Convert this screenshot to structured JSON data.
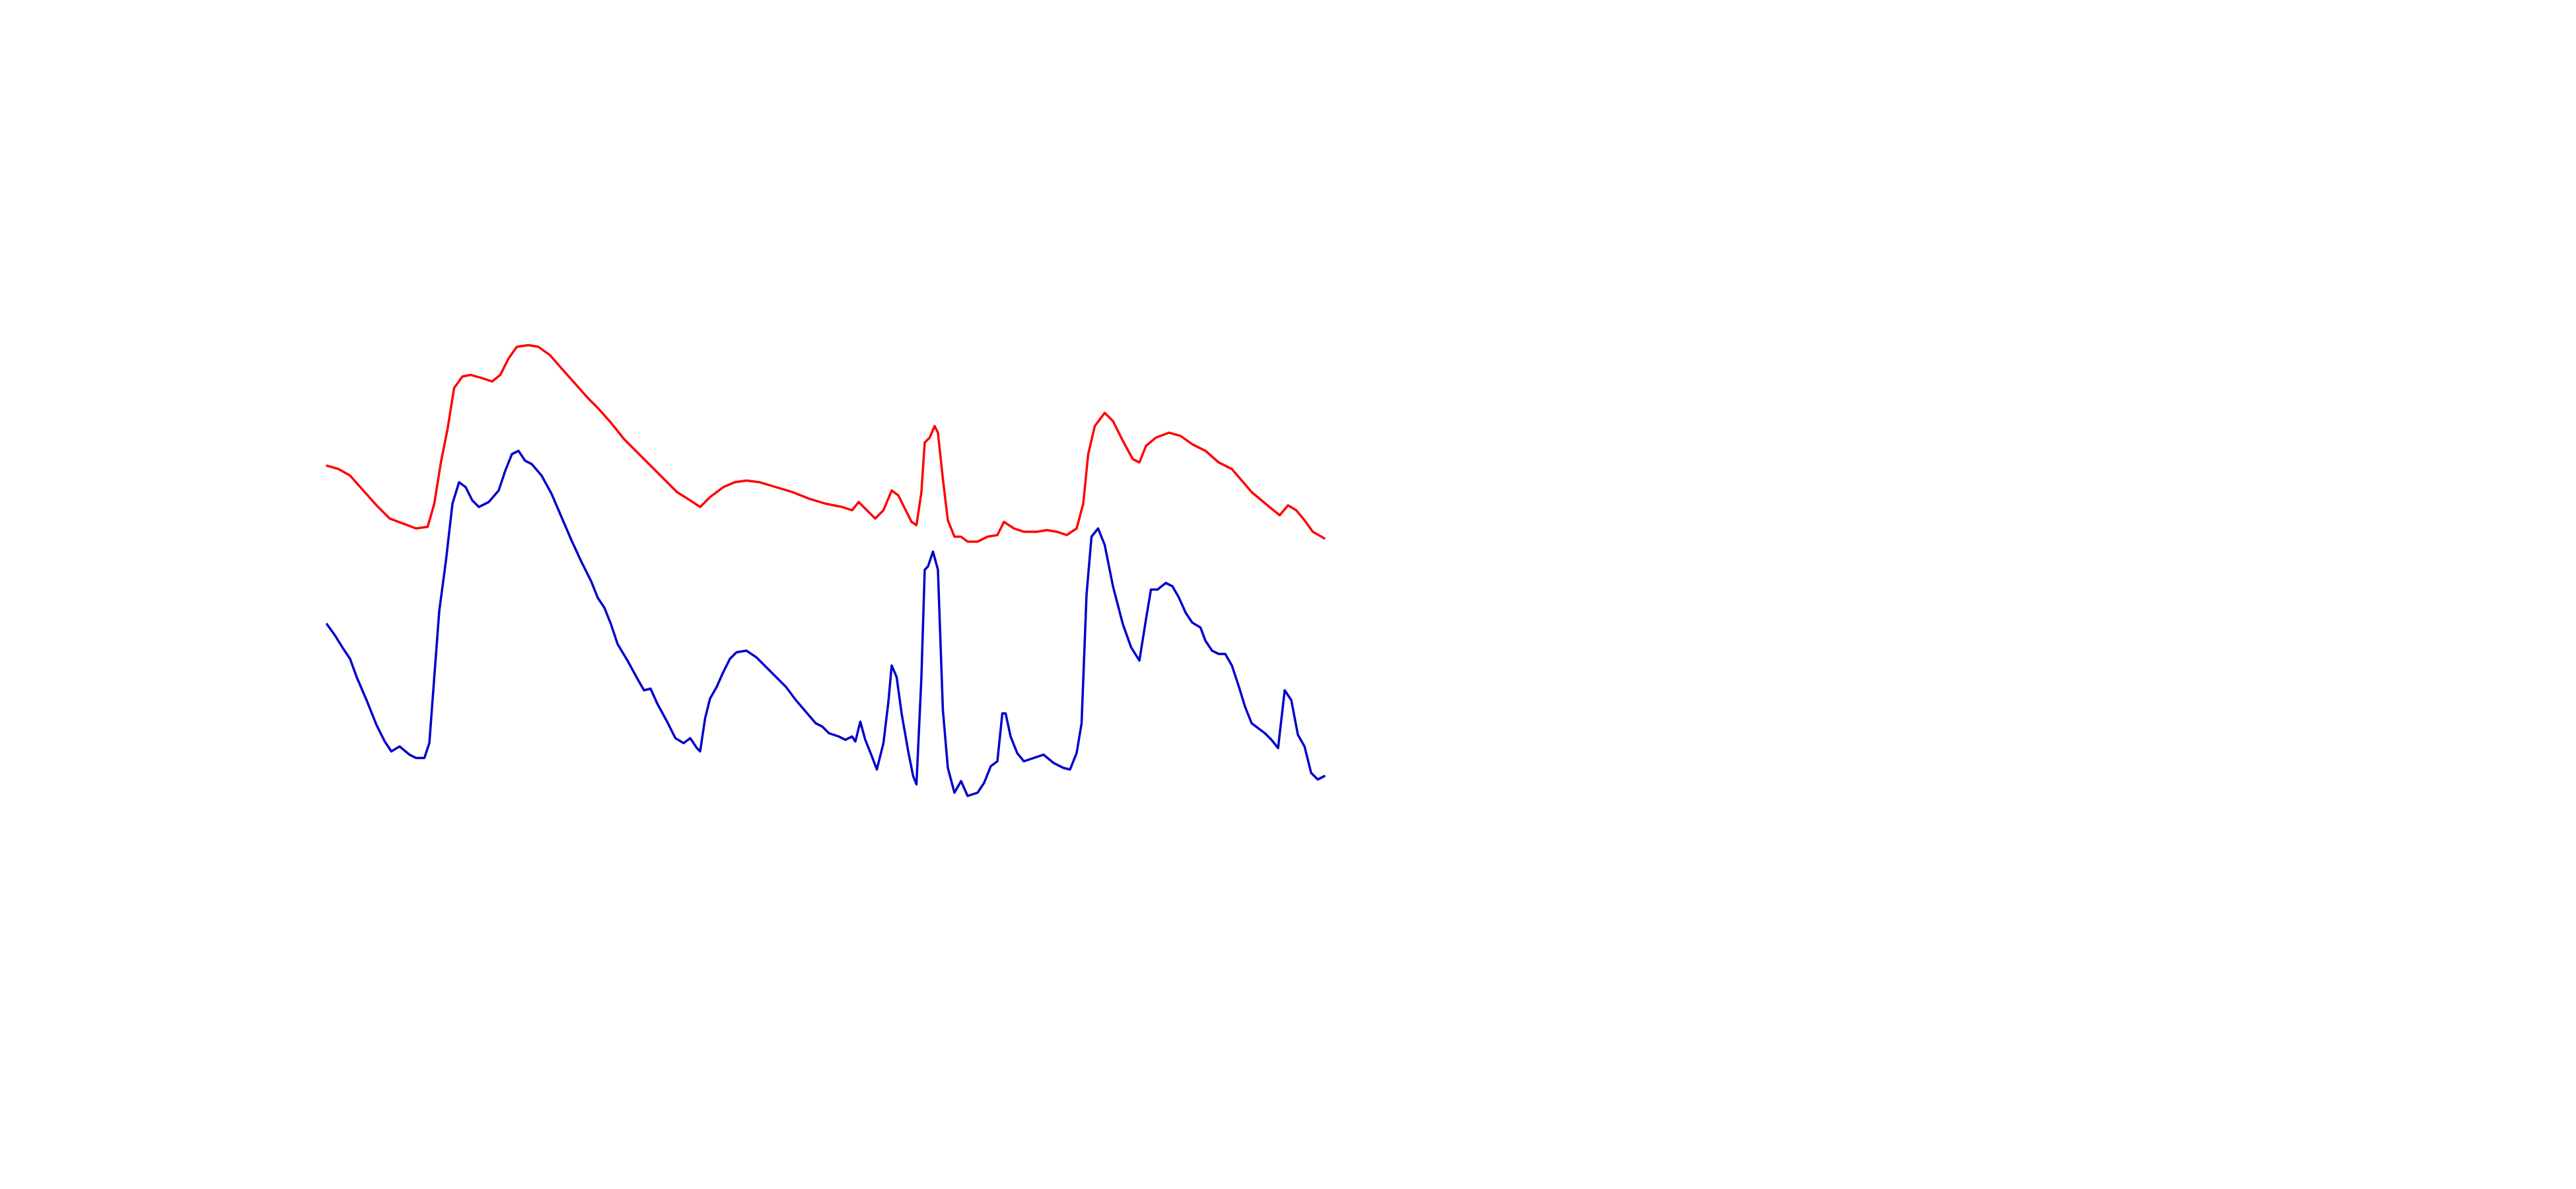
{
  "chart_data": {
    "type": "line",
    "xlim": [
      0,
      1560
    ],
    "ylim": [
      720,
      0
    ],
    "series": [
      {
        "color": "#ff0000",
        "x": [
          198,
          205,
          212,
          220,
          228,
          236,
          244,
          252,
          259,
          263,
          267,
          271,
          275,
          280,
          285,
          292,
          298,
          303,
          308,
          313,
          320,
          326,
          333,
          340,
          348,
          356,
          362,
          370,
          378,
          386,
          394,
          402,
          410,
          418,
          424,
          430,
          438,
          445,
          452,
          460,
          470,
          480,
          490,
          500,
          510,
          516,
          520,
          525,
          530,
          535,
          540,
          544,
          548,
          552,
          555,
          558,
          560,
          563,
          566,
          568,
          571,
          574,
          578,
          582,
          586,
          592,
          598,
          604,
          608,
          614,
          620,
          628,
          634,
          640,
          646,
          652,
          656,
          659,
          663,
          669,
          674,
          680,
          686,
          690,
          694,
          700,
          708,
          715,
          722,
          730,
          738,
          746,
          752,
          758,
          764,
          770,
          775,
          780,
          785,
          790,
          795,
          802
        ],
        "values": [
          282,
          284,
          288,
          297,
          306,
          314,
          317,
          320,
          319,
          305,
          280,
          260,
          235,
          228,
          227,
          229,
          231,
          227,
          217,
          210,
          209,
          210,
          215,
          223,
          232,
          241,
          247,
          256,
          266,
          274,
          282,
          290,
          298,
          303,
          307,
          301,
          295,
          292,
          291,
          292,
          295,
          298,
          302,
          305,
          307,
          309,
          304,
          309,
          314,
          309,
          297,
          300,
          308,
          316,
          318,
          298,
          268,
          265,
          258,
          262,
          290,
          315,
          325,
          325,
          328,
          328,
          325,
          324,
          316,
          320,
          322,
          322,
          321,
          322,
          324,
          320,
          305,
          275,
          258,
          250,
          255,
          267,
          278,
          280,
          270,
          265,
          262,
          264,
          269,
          273,
          280,
          284,
          291,
          298,
          303,
          308,
          312,
          306,
          309,
          315,
          322,
          326
        ]
      },
      {
        "color": "#0000cc",
        "x": [
          198,
          203,
          208,
          212,
          216,
          222,
          228,
          233,
          237,
          242,
          248,
          252,
          257,
          260,
          263,
          266,
          270,
          274,
          278,
          282,
          286,
          290,
          296,
          302,
          306,
          310,
          314,
          318,
          322,
          328,
          334,
          340,
          346,
          352,
          358,
          362,
          366,
          370,
          374,
          380,
          386,
          390,
          394,
          398,
          404,
          409,
          414,
          418,
          422,
          424,
          427,
          430,
          434,
          438,
          442,
          446,
          452,
          458,
          464,
          470,
          476,
          482,
          488,
          494,
          498,
          502,
          508,
          512,
          516,
          518,
          521,
          524,
          528,
          531,
          535,
          538,
          540,
          543,
          546,
          550,
          553,
          555,
          558,
          560,
          562,
          565,
          568,
          571,
          574,
          578,
          582,
          586,
          592,
          596,
          600,
          604,
          607,
          609,
          612,
          616,
          620,
          626,
          632,
          638,
          644,
          648,
          652,
          655,
          658,
          661,
          665,
          669,
          674,
          680,
          685,
          690,
          694,
          697,
          701,
          706,
          710,
          714,
          718,
          722,
          727,
          730,
          734,
          738,
          742,
          746,
          750,
          754,
          758,
          762,
          766,
          770,
          774,
          778,
          782,
          786,
          790,
          794,
          798,
          802
        ],
        "values": [
          378,
          385,
          393,
          399,
          410,
          424,
          439,
          449,
          455,
          452,
          457,
          459,
          459,
          450,
          410,
          370,
          340,
          305,
          292,
          295,
          303,
          307,
          304,
          297,
          285,
          275,
          273,
          279,
          281,
          288,
          299,
          313,
          327,
          340,
          352,
          362,
          368,
          378,
          390,
          400,
          411,
          418,
          417,
          426,
          437,
          447,
          450,
          447,
          453,
          455,
          435,
          423,
          416,
          407,
          399,
          395,
          394,
          398,
          404,
          410,
          416,
          424,
          431,
          438,
          440,
          444,
          446,
          448,
          446,
          449,
          437,
          448,
          458,
          466,
          450,
          425,
          403,
          410,
          432,
          455,
          470,
          475,
          410,
          345,
          343,
          334,
          345,
          430,
          465,
          480,
          473,
          482,
          480,
          474,
          464,
          461,
          432,
          432,
          446,
          456,
          461,
          459,
          457,
          462,
          465,
          466,
          456,
          438,
          360,
          325,
          320,
          330,
          355,
          378,
          392,
          400,
          375,
          357,
          357,
          353,
          355,
          362,
          371,
          377,
          380,
          388,
          394,
          396,
          396,
          403,
          415,
          428,
          438,
          441,
          444,
          448,
          453,
          418,
          424,
          445,
          452,
          468,
          472,
          470
        ]
      }
    ]
  }
}
